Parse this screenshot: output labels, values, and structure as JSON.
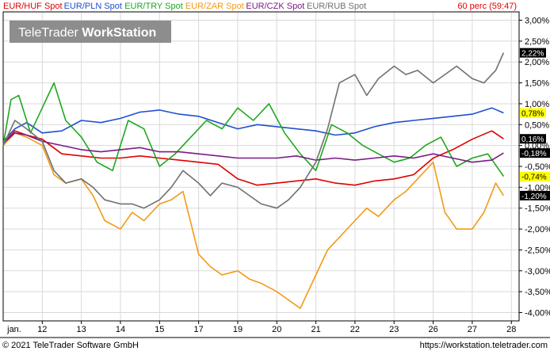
{
  "legend": [
    {
      "label": "EUR/HUF Spot",
      "color": "#e00000"
    },
    {
      "label": "EUR/PLN Spot",
      "color": "#1f4fcf"
    },
    {
      "label": "EUR/TRY Spot",
      "color": "#1fa81f"
    },
    {
      "label": "EUR/ZAR Spot",
      "color": "#f29a16"
    },
    {
      "label": "EUR/CZK Spot",
      "color": "#7a1b86"
    },
    {
      "label": "EUR/RUB Spot",
      "color": "#707070"
    }
  ],
  "period_label": "60 perc (59:47)",
  "watermark": {
    "part1": "TeleTrader ",
    "part2": "WorkStation"
  },
  "footer": {
    "left": "© 2021 TeleTrader Software GmbH",
    "right": "https://workstation.teletrader.com"
  },
  "colors": {
    "accent_badge": "#ffff00"
  },
  "chart_data": {
    "type": "line",
    "x_categories": [
      "jan.",
      "12",
      "13",
      "14",
      "15",
      "17",
      "19",
      "20",
      "21",
      "22",
      "23",
      "26",
      "27",
      "28"
    ],
    "ylim": [
      -4.2,
      3.2
    ],
    "yticks": [
      "3,00%",
      "2,50%",
      "2,00%",
      "1,50%",
      "1,00%",
      "0,50%",
      "0,00%",
      "-0,50%",
      "-1,00%",
      "-1,50%",
      "-2,00%",
      "-2,50%",
      "-3,00%",
      "-3,50%",
      "-4,00%"
    ],
    "ytick_values": [
      3.0,
      2.5,
      2.0,
      1.5,
      1.0,
      0.5,
      0.0,
      -0.5,
      -1.0,
      -1.5,
      -2.0,
      -2.5,
      -3.0,
      -3.5,
      -4.0
    ],
    "grid": true,
    "series": [
      {
        "name": "EUR/HUF Spot",
        "color": "#e00000",
        "x": [
          0,
          0.3,
          0.6,
          1,
          1.5,
          2,
          2.5,
          3,
          3.5,
          4,
          4.5,
          5,
          5.5,
          6,
          6.5,
          7,
          7.5,
          8,
          8.5,
          9,
          9.5,
          10,
          10.5,
          11,
          11.5,
          12,
          12.5,
          12.8
        ],
        "values": [
          0.05,
          0.35,
          0.25,
          0.15,
          -0.2,
          -0.25,
          -0.3,
          -0.3,
          -0.25,
          -0.3,
          -0.35,
          -0.4,
          -0.45,
          -0.8,
          -0.95,
          -0.9,
          -0.85,
          -0.8,
          -0.9,
          -0.95,
          -0.85,
          -0.8,
          -0.7,
          -0.3,
          -0.1,
          0.15,
          0.35,
          0.16
        ]
      },
      {
        "name": "EUR/PLN Spot",
        "color": "#1f4fcf",
        "x": [
          0,
          0.3,
          0.6,
          1,
          1.5,
          2,
          2.5,
          3,
          3.5,
          4,
          4.5,
          5,
          5.5,
          6,
          6.5,
          7,
          7.5,
          8,
          8.5,
          9,
          9.5,
          10,
          10.5,
          11,
          11.5,
          12,
          12.5,
          12.8
        ],
        "values": [
          0.1,
          0.4,
          0.55,
          0.3,
          0.35,
          0.6,
          0.55,
          0.65,
          0.8,
          0.85,
          0.75,
          0.7,
          0.55,
          0.4,
          0.5,
          0.45,
          0.4,
          0.35,
          0.25,
          0.3,
          0.45,
          0.55,
          0.6,
          0.65,
          0.7,
          0.75,
          0.9,
          0.78
        ]
      },
      {
        "name": "EUR/TRY Spot",
        "color": "#1fa81f",
        "x": [
          0,
          0.2,
          0.4,
          0.7,
          1,
          1.3,
          1.6,
          2,
          2.4,
          2.8,
          3.2,
          3.6,
          4,
          4.4,
          4.8,
          5.2,
          5.6,
          6,
          6.4,
          6.8,
          7.2,
          7.6,
          8,
          8.4,
          8.8,
          9.2,
          9.6,
          10,
          10.4,
          10.8,
          11.2,
          11.6,
          12,
          12.4,
          12.8
        ],
        "values": [
          0.0,
          1.1,
          1.2,
          0.3,
          0.9,
          1.5,
          0.6,
          0.2,
          -0.4,
          -0.6,
          0.6,
          0.4,
          -0.5,
          -0.2,
          0.2,
          0.6,
          0.4,
          0.9,
          0.6,
          1.0,
          0.3,
          -0.2,
          -0.6,
          0.5,
          0.3,
          0.0,
          -0.2,
          -0.4,
          -0.3,
          0.0,
          0.2,
          -0.5,
          -0.3,
          -0.2,
          -0.74
        ]
      },
      {
        "name": "EUR/ZAR Spot",
        "color": "#f29a16",
        "x": [
          0,
          0.3,
          0.6,
          1,
          1.3,
          1.6,
          2,
          2.3,
          2.6,
          3,
          3.3,
          3.6,
          4,
          4.3,
          4.6,
          5,
          5.3,
          5.6,
          6,
          6.3,
          6.6,
          7,
          7.3,
          7.6,
          8,
          8.3,
          8.6,
          9,
          9.3,
          9.6,
          10,
          10.3,
          10.6,
          11,
          11.3,
          11.6,
          12,
          12.3,
          12.6,
          12.8
        ],
        "values": [
          0.0,
          0.3,
          0.2,
          0.0,
          -0.7,
          -0.9,
          -0.8,
          -1.2,
          -1.8,
          -2.0,
          -1.6,
          -1.8,
          -1.4,
          -1.3,
          -1.1,
          -2.6,
          -2.9,
          -3.1,
          -3.0,
          -3.2,
          -3.3,
          -3.5,
          -3.7,
          -3.9,
          -3.1,
          -2.5,
          -2.2,
          -1.8,
          -1.5,
          -1.7,
          -1.3,
          -1.1,
          -0.8,
          -0.4,
          -1.6,
          -2.0,
          -2.0,
          -1.6,
          -0.9,
          -1.2
        ]
      },
      {
        "name": "EUR/CZK Spot",
        "color": "#7a1b86",
        "x": [
          0,
          0.3,
          0.6,
          1,
          1.5,
          2,
          2.5,
          3,
          3.5,
          4,
          4.5,
          5,
          5.5,
          6,
          6.5,
          7,
          7.5,
          8,
          8.5,
          9,
          9.5,
          10,
          10.5,
          11,
          11.5,
          12,
          12.5,
          12.8
        ],
        "values": [
          0.05,
          0.3,
          0.25,
          0.1,
          0.0,
          -0.1,
          -0.15,
          -0.1,
          -0.05,
          -0.15,
          -0.15,
          -0.2,
          -0.25,
          -0.3,
          -0.3,
          -0.3,
          -0.25,
          -0.35,
          -0.3,
          -0.35,
          -0.3,
          -0.25,
          -0.3,
          -0.2,
          -0.3,
          -0.4,
          -0.35,
          -0.18
        ]
      },
      {
        "name": "EUR/RUB Spot",
        "color": "#707070",
        "x": [
          0,
          0.3,
          0.6,
          1,
          1.3,
          1.6,
          2,
          2.3,
          2.6,
          3,
          3.3,
          3.6,
          4,
          4.3,
          4.6,
          5,
          5.3,
          5.6,
          6,
          6.3,
          6.6,
          7,
          7.3,
          7.6,
          8,
          8.3,
          8.6,
          9,
          9.3,
          9.6,
          10,
          10.3,
          10.6,
          11,
          11.3,
          11.6,
          12,
          12.3,
          12.6,
          12.8
        ],
        "values": [
          0.0,
          0.6,
          0.4,
          0.1,
          -0.6,
          -0.9,
          -0.8,
          -1.0,
          -1.3,
          -1.4,
          -1.4,
          -1.5,
          -1.3,
          -1.0,
          -0.6,
          -0.9,
          -1.2,
          -0.9,
          -1.0,
          -1.2,
          -1.4,
          -1.5,
          -1.3,
          -1.0,
          -0.4,
          0.4,
          1.5,
          1.7,
          1.2,
          1.6,
          1.9,
          1.7,
          1.8,
          1.5,
          1.7,
          1.9,
          1.6,
          1.5,
          1.8,
          2.22
        ]
      }
    ],
    "end_labels": [
      {
        "label": "2,22%",
        "value": 2.22,
        "bg": "#000000",
        "fg": "#ffffff"
      },
      {
        "label": "0,78%",
        "value": 0.78,
        "bg": "#ffff00",
        "fg": "#000000"
      },
      {
        "label": "0,16%",
        "value": 0.16,
        "bg": "#000000",
        "fg": "#ffffff"
      },
      {
        "label": "-0,18%",
        "value": -0.18,
        "bg": "#000000",
        "fg": "#ffffff"
      },
      {
        "label": "-0,74%",
        "value": -0.74,
        "bg": "#ffff00",
        "fg": "#000000"
      },
      {
        "label": "-1,20%",
        "value": -1.2,
        "bg": "#000000",
        "fg": "#ffffff"
      }
    ]
  }
}
